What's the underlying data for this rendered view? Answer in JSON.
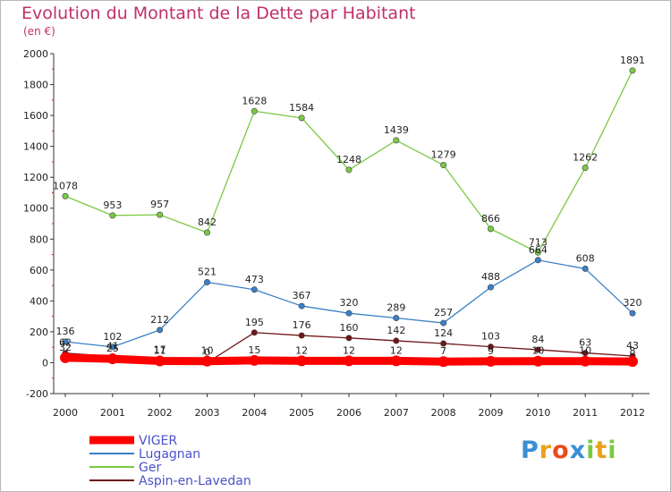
{
  "header": {
    "title": "Evolution du Montant de la Dette par Habitant",
    "unit": "(en €)"
  },
  "logo": {
    "text": "Proxiti"
  },
  "chart_data": {
    "type": "line",
    "x": [
      "2000",
      "2001",
      "2002",
      "2003",
      "2004",
      "2005",
      "2006",
      "2007",
      "2008",
      "2009",
      "2010",
      "2011",
      "2012"
    ],
    "ylim": [
      -200,
      2000
    ],
    "yticks": [
      -200,
      0,
      200,
      400,
      600,
      800,
      1000,
      1200,
      1400,
      1600,
      1800,
      2000
    ],
    "grid": false,
    "legend_position": "bottom-left",
    "series": [
      {
        "name": "VIGER",
        "color": "#ff0000",
        "values": [
          32,
          25,
          11,
          10,
          15,
          12,
          12,
          12,
          7,
          9,
          10,
          10,
          8
        ],
        "labels": [
          "32",
          "25",
          "11",
          "10",
          "15",
          "12",
          "12",
          "12",
          "7",
          "9",
          "10",
          "10",
          "8"
        ]
      },
      {
        "name": "Lugagnan",
        "color": "#3b80c7",
        "values": [
          136,
          102,
          212,
          521,
          473,
          367,
          320,
          289,
          257,
          488,
          664,
          608,
          320
        ],
        "labels": [
          "136",
          "102",
          "212",
          "521",
          "473",
          "367",
          "320",
          "289",
          "257",
          "488",
          "664",
          "608",
          "320"
        ]
      },
      {
        "name": "Ger",
        "color": "#7ac943",
        "values": [
          1078,
          953,
          957,
          842,
          1628,
          1584,
          1248,
          1439,
          1279,
          866,
          713,
          1262,
          1891
        ],
        "labels": [
          "1078",
          "953",
          "957",
          "842",
          "1628",
          "1584",
          "1248",
          "1439",
          "1279",
          "866",
          "713",
          "1262",
          "1891"
        ]
      },
      {
        "name": "Aspin-en-Lavedan",
        "color": "#6e1518",
        "values": [
          62,
          41,
          17,
          0,
          195,
          176,
          160,
          142,
          124,
          103,
          84,
          63,
          43
        ],
        "labels": [
          "62",
          "41",
          "17",
          "0",
          "195",
          "176",
          "160",
          "142",
          "124",
          "103",
          "84",
          "63",
          "43"
        ]
      }
    ]
  }
}
